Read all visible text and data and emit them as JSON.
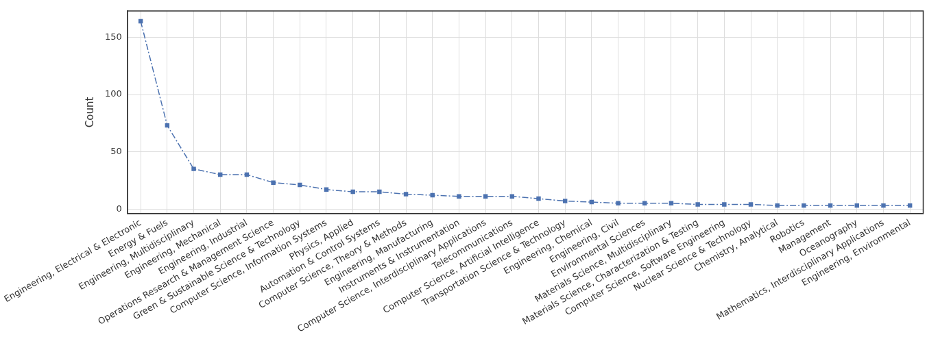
{
  "chart_data": {
    "type": "line",
    "ylabel": "Count",
    "categories": [
      "Engineering, Electrical & Electronic",
      "Energy & Fuels",
      "Engineering, Multidisciplinary",
      "Engineering, Mechanical",
      "Engineering, Industrial",
      "Operations Research & Management Science",
      "Green & Sustainable Science & Technology",
      "Computer Science, Information Systems",
      "Physics, Applied",
      "Automation & Control Systems",
      "Computer Science, Theory & Methods",
      "Engineering, Manufacturing",
      "Instruments & Instrumentation",
      "Computer Science, Interdisciplinary Applications",
      "Telecommunications",
      "Computer Science, Artificial Intelligence",
      "Transportation Science & Technology",
      "Engineering, Chemical",
      "Engineering, Civil",
      "Environmental Sciences",
      "Materials Science, Multidisciplinary",
      "Materials Science, Characterization & Testing",
      "Computer Science, Software Engineering",
      "Nuclear Science & Technology",
      "Chemistry, Analytical",
      "Robotics",
      "Management",
      "Oceanography",
      "Mathematics, Interdisciplinary Applications",
      "Engineering, Environmental"
    ],
    "series": [
      {
        "color": "#4c72b0",
        "values": [
          164,
          73,
          35,
          30,
          30,
          23,
          21,
          17,
          15,
          15,
          13,
          12,
          11,
          11,
          11,
          9,
          7,
          6,
          5,
          5,
          5,
          4,
          4,
          4,
          3,
          3,
          3,
          3,
          3,
          3
        ]
      }
    ],
    "ylim": [
      -4,
      173
    ],
    "yticks": [
      0,
      50,
      100,
      150
    ],
    "grid": true,
    "legend": false,
    "marker": "square",
    "line_style": "dashdot"
  }
}
